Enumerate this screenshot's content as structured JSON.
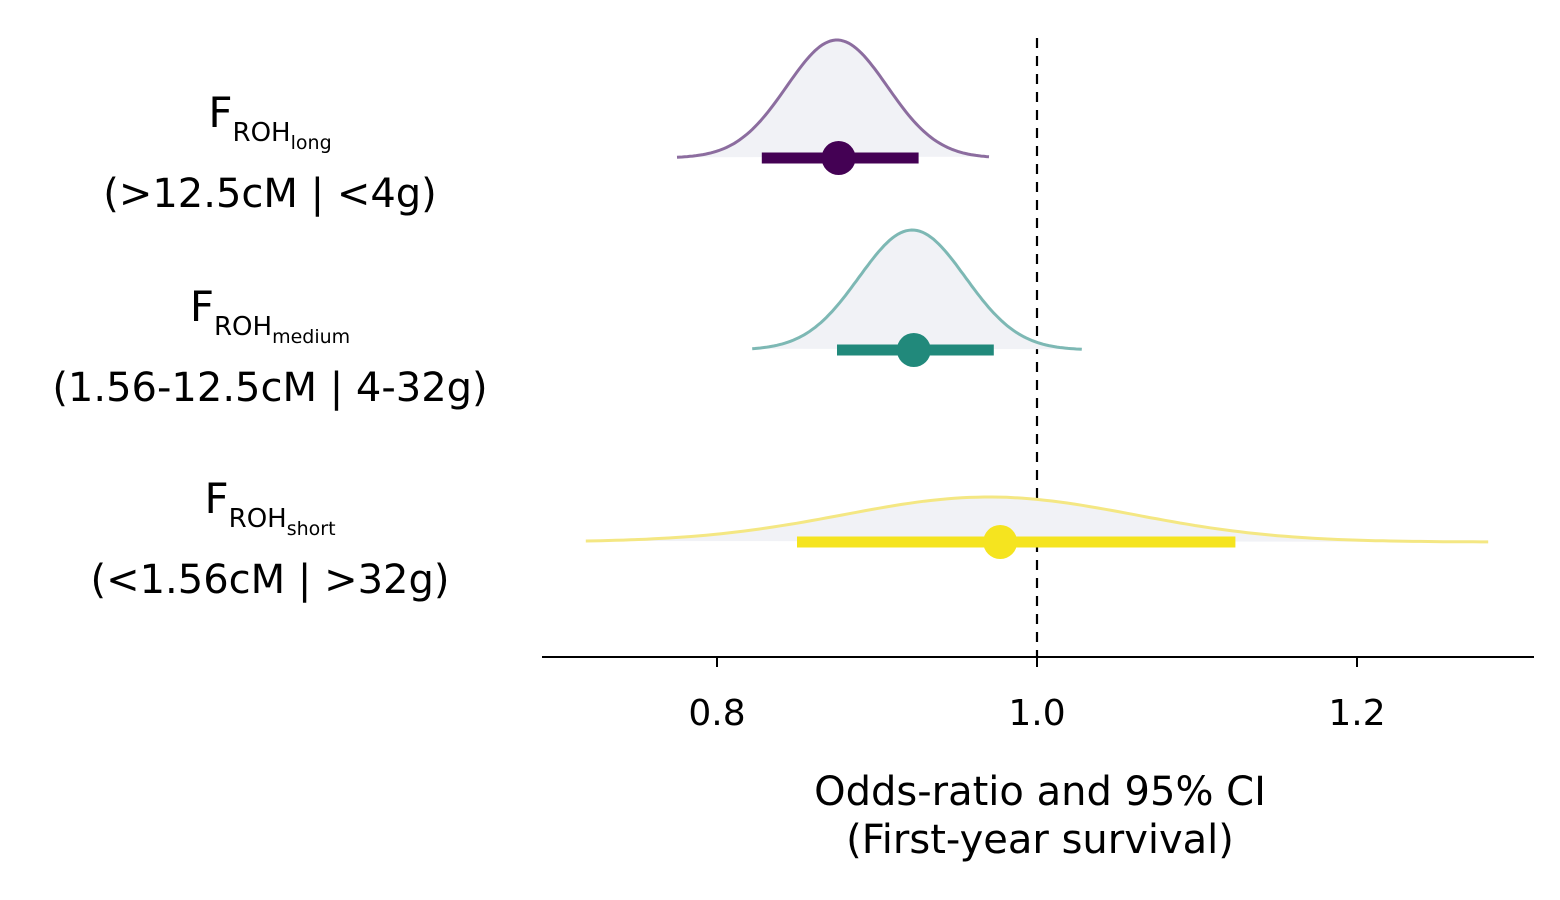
{
  "chart_data": {
    "type": "forest-density",
    "xlabel": "Odds-ratio and 95% CI",
    "xlabel_sub": "(First-year survival)",
    "xlim": [
      0.69,
      1.31
    ],
    "xticks": [
      0.8,
      1.0,
      1.2
    ],
    "xtick_labels": [
      "0.8",
      "1.0",
      "1.2"
    ],
    "reference_line": 1.0,
    "rows": [
      {
        "label_main": "F",
        "label_sub": "ROH",
        "label_subsub": "long",
        "range": "(>12.5cM | <4g)",
        "estimate": 0.876,
        "ci_low": 0.828,
        "ci_high": 0.926,
        "density_range": [
          0.775,
          0.97
        ],
        "density_peak": 0.875,
        "color": "#440154",
        "outline_color": "#8c6d9f"
      },
      {
        "label_main": "F",
        "label_sub": "ROH",
        "label_subsub": "medium",
        "range": "(1.56-12.5cM | 4-32g)",
        "estimate": 0.923,
        "ci_low": 0.875,
        "ci_high": 0.973,
        "density_range": [
          0.822,
          1.028
        ],
        "density_peak": 0.922,
        "color": "#21897b",
        "outline_color": "#7db8b4"
      },
      {
        "label_main": "F",
        "label_sub": "ROH",
        "label_subsub": "short",
        "range": "(<1.56cM | >32g)",
        "estimate": 0.977,
        "ci_low": 0.85,
        "ci_high": 1.124,
        "density_range": [
          0.718,
          1.282
        ],
        "density_peak": 0.97,
        "color": "#f5e41f",
        "outline_color": "#f4e783"
      }
    ]
  }
}
